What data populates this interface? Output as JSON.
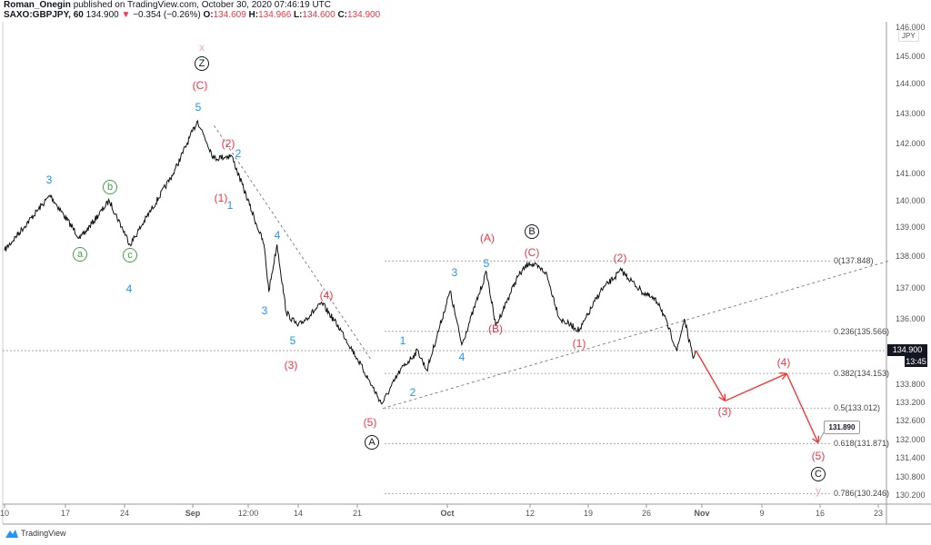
{
  "header": {
    "author": "Roman_Onegin",
    "published": "published on TradingView.com, October 30, 2020 07:46:19 UTC",
    "symbol": "SAXO:GBPJPY, 60",
    "last": "134.900",
    "change": "−0.354 (−0.26%)",
    "o_label": "O:",
    "o": "134.609",
    "h_label": "H:",
    "h": "134.966",
    "l_label": "L:",
    "l": "134.600",
    "c_label": "C:",
    "c": "134.900"
  },
  "colors": {
    "up_text": "#131722",
    "down": "#f23645",
    "wave_red": "#f23645",
    "wave_blue": "#2196f3",
    "wave_green": "#43a047",
    "wave_pink": "#f4a7c0",
    "projection": "#ff2a2a"
  },
  "axis": {
    "currency": "JPY",
    "price_ticks": [
      "146.000",
      "145.000",
      "144.000",
      "143.000",
      "142.000",
      "141.000",
      "140.000",
      "139.000",
      "138.000",
      "137.000",
      "136.000",
      "133.800",
      "133.200",
      "132.600",
      "132.000",
      "131.400",
      "130.800",
      "130.200"
    ],
    "date_ticks": [
      "10",
      "17",
      "24",
      "Sep",
      "12:00",
      "14",
      "21",
      "Oct",
      "12",
      "19",
      "26",
      "Nov",
      "9",
      "16",
      "23"
    ],
    "last_price": "134.900",
    "countdown": "13:45"
  },
  "chart_data": {
    "type": "line",
    "title": "",
    "xlabel": "",
    "ylabel": "",
    "ylim": [
      130.0,
      146.2
    ],
    "grid": false,
    "price_pivots": [
      [
        "2020-08-10 00:00",
        138.2
      ],
      [
        "2020-08-13 22:00",
        140.2
      ],
      [
        "2020-08-18 12:00",
        138.6
      ],
      [
        "2020-08-21 00:00",
        140.0
      ],
      [
        "2020-08-24 19:00",
        138.4
      ],
      [
        "2020-08-28 12:00",
        141.0
      ],
      [
        "2020-09-01 14:00",
        142.76
      ],
      [
        "2020-09-03 00:00",
        141.5
      ],
      [
        "2020-09-04 12:00",
        141.6
      ],
      [
        "2020-09-09 07:00",
        138.4
      ],
      [
        "2020-09-09 17:00",
        136.9
      ],
      [
        "2020-09-10 10:00",
        138.4
      ],
      [
        "2020-09-11 05:00",
        136.2
      ],
      [
        "2020-09-14 05:00",
        135.75
      ],
      [
        "2020-09-16 07:00",
        136.5
      ],
      [
        "2020-09-17 22:00",
        135.6
      ],
      [
        "2020-09-21 07:00",
        134.65
      ],
      [
        "2020-09-23 10:00",
        133.15
      ],
      [
        "2020-09-25 00:00",
        134.25
      ],
      [
        "2020-09-28 12:00",
        134.9
      ],
      [
        "2020-09-29 07:00",
        134.25
      ],
      [
        "2020-10-01 07:00",
        136.9
      ],
      [
        "2020-10-02 07:00",
        135.1
      ],
      [
        "2020-10-06 10:00",
        137.5
      ],
      [
        "2020-10-07 05:00",
        135.75
      ],
      [
        "2020-10-09 02:00",
        137.35
      ],
      [
        "2020-10-12 02:00",
        137.8
      ],
      [
        "2020-10-13 12:00",
        137.5
      ],
      [
        "2020-10-14 17:00",
        136.0
      ],
      [
        "2020-10-16 10:00",
        135.6
      ],
      [
        "2020-10-20 05:00",
        136.9
      ],
      [
        "2020-10-22 00:00",
        137.55
      ],
      [
        "2020-10-23 17:00",
        136.9
      ],
      [
        "2020-10-27 06:00",
        136.5
      ],
      [
        "2020-10-28 19:00",
        134.9
      ],
      [
        "2020-10-29 10:00",
        136.0
      ],
      [
        "2020-10-30 04:00",
        134.65
      ],
      [
        "2020-10-30 10:00",
        134.9
      ]
    ],
    "projection": [
      [
        "2020-10-30 10:00",
        134.9
      ],
      [
        "2020-11-03 22:00",
        133.25
      ],
      [
        "2020-11-11 05:00",
        134.15
      ],
      [
        "2020-11-13 22:00",
        131.89
      ]
    ],
    "projection_target": "131.890",
    "fib_levels": [
      {
        "label": "0(137.848)",
        "price": 137.848
      },
      {
        "label": "0.236(135.566)",
        "price": 135.566
      },
      {
        "label": "0.382(134.153)",
        "price": 134.153
      },
      {
        "label": "0.5(133.012)",
        "price": 133.012
      },
      {
        "label": "0.618(131.871)",
        "price": 131.871
      },
      {
        "label": "0.786(130.246)",
        "price": 130.246
      }
    ],
    "trendlines": [
      [
        [
          "2020-09-03 00:00",
          142.6
        ],
        [
          "2020-09-22 12:00",
          134.6
        ]
      ],
      [
        [
          "2020-09-23 12:00",
          133.0
        ],
        [
          "2020-11-24 00:00",
          137.85
        ]
      ]
    ]
  },
  "waves": {
    "x_top": "x",
    "z": "Z",
    "c_top": "(C)",
    "five_top": "5",
    "three_a": "3",
    "b_small": "b",
    "a_small": "a",
    "c_small": "c",
    "four_a": "4",
    "p2": "(2)",
    "two": "2",
    "p1": "(1)",
    "one": "1",
    "four_b": "4",
    "three_b": "3",
    "p4": "(4)",
    "five_b": "5",
    "p3": "(3)",
    "p5": "(5)",
    "A": "A",
    "one_c": "1",
    "two_c": "2",
    "three_c": "3",
    "four_c": "4",
    "five_c": "5",
    "pA": "(A)",
    "B": "B",
    "pC": "(C)",
    "pB": "(B)",
    "p1b": "(1)",
    "p2b": "(2)",
    "proj4": "(4)",
    "proj3": "(3)",
    "proj5": "(5)",
    "C": "C",
    "y": "y"
  },
  "footer": {
    "brand": "TradingView"
  }
}
